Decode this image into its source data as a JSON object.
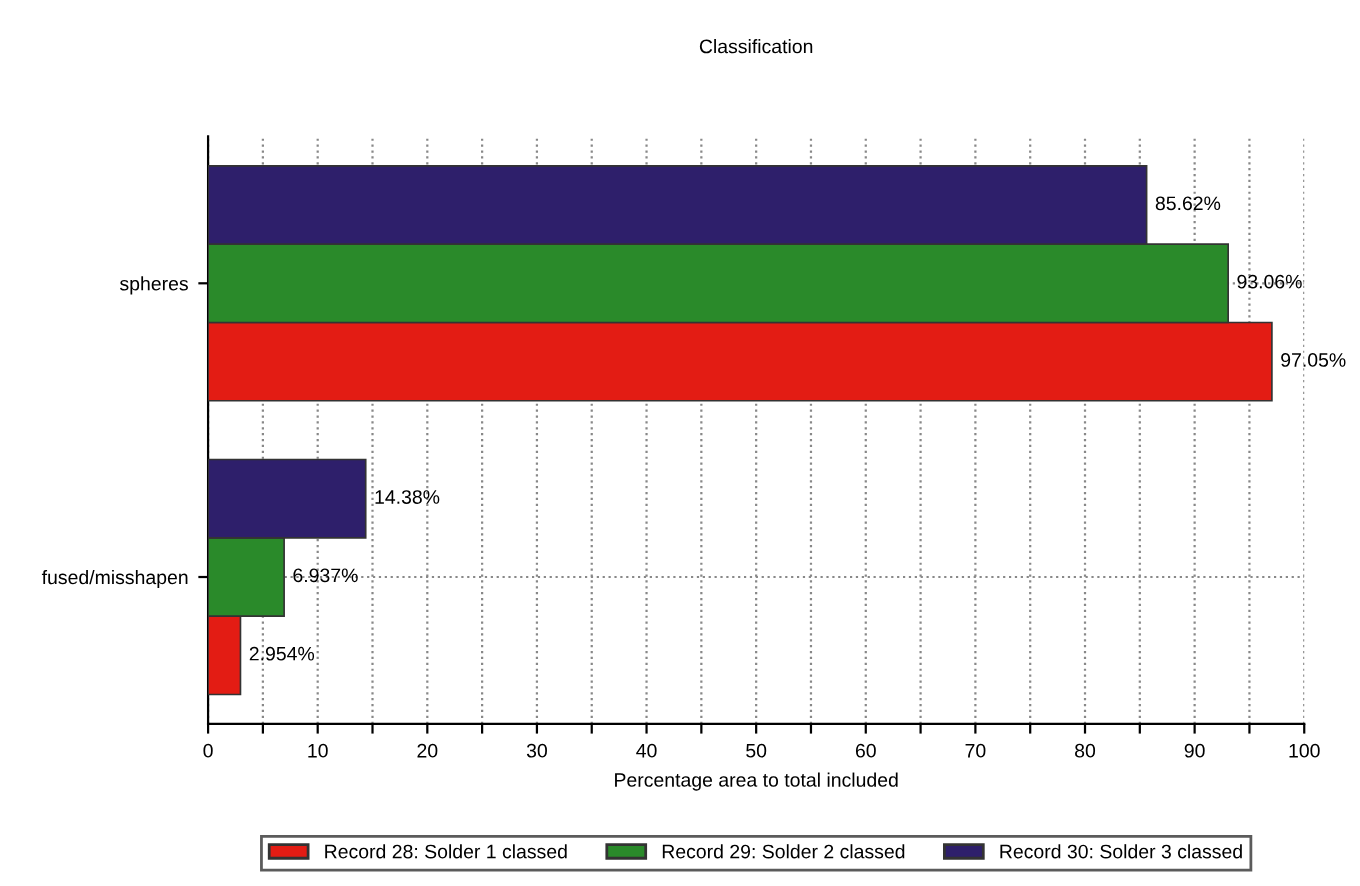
{
  "chart_data": {
    "type": "bar",
    "orientation": "horizontal",
    "title": "Classification",
    "xlabel": "Percentage area to total included",
    "categories": [
      "spheres",
      "fused/misshapen"
    ],
    "series": [
      {
        "name": "Record 28: Solder 1 classed",
        "color": "#e31c14",
        "values": [
          97.05,
          2.954
        ],
        "value_labels": [
          "97.05%",
          "2.954%"
        ]
      },
      {
        "name": "Record 29: Solder 2 classed",
        "color": "#2a8a2a",
        "values": [
          93.06,
          6.937
        ],
        "value_labels": [
          "93.06%",
          "6.937%"
        ]
      },
      {
        "name": "Record 30: Solder 3 classed",
        "color": "#2e1f6b",
        "values": [
          85.62,
          14.38
        ],
        "value_labels": [
          "85.62%",
          "14.38%"
        ]
      }
    ],
    "xlim": [
      0,
      100
    ],
    "xticks": [
      0,
      {
        "value": 5,
        "label": null
      },
      10,
      {
        "value": 15,
        "label": null
      },
      20,
      {
        "value": 25,
        "label": null
      },
      30,
      {
        "value": 35,
        "label": null
      },
      40,
      {
        "value": 45,
        "label": null
      },
      50,
      {
        "value": 55,
        "label": null
      },
      60,
      {
        "value": 65,
        "label": null
      },
      70,
      {
        "value": 75,
        "label": null
      },
      80,
      {
        "value": 85,
        "label": null
      },
      90,
      {
        "value": 95,
        "label": null
      },
      100
    ],
    "grid": true,
    "legend": "bottom"
  }
}
